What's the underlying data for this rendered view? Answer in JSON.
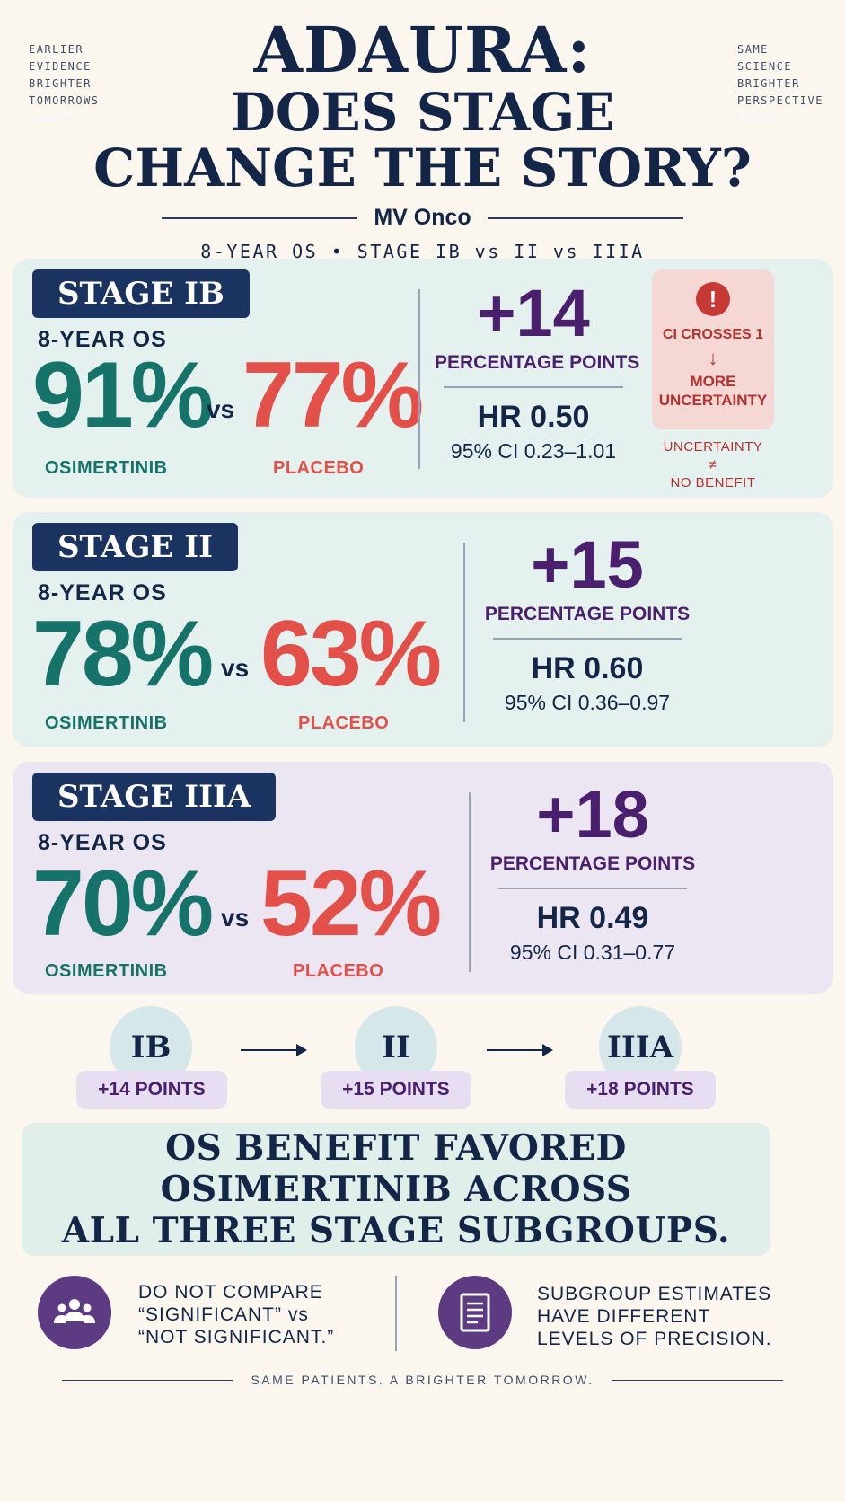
{
  "header": {
    "corner_left": [
      "EARLIER",
      "EVIDENCE",
      "BRIGHTER",
      "TOMORROWS"
    ],
    "corner_right": [
      "SAME",
      "SCIENCE",
      "BRIGHTER",
      "PERSPECTIVE"
    ],
    "title_line1": "ADAURA:",
    "title_line2": "DOES STAGE",
    "title_line3": "CHANGE THE STORY?",
    "brand": "MV Onco",
    "subtitle": "8-YEAR OS • STAGE IB vs II vs IIIA"
  },
  "stages": [
    {
      "stage": "STAGE IB",
      "os_label": "8-YEAR OS",
      "osimertinib_pct": "91%",
      "vs": "vs",
      "placebo_pct": "77%",
      "osimertinib_label": "OSIMERTINIB",
      "placebo_label": "PLACEBO",
      "delta": "+14",
      "delta_label": "PERCENTAGE POINTS",
      "hr": "HR 0.50",
      "ci": "95% CI 0.23–1.01",
      "warning": {
        "icon": "exclamation-icon",
        "line1": "CI CROSSES 1",
        "arrow": "↓",
        "line2": "MORE",
        "line3": "UNCERTAINTY",
        "note1": "UNCERTAINTY",
        "note2": "≠",
        "note3": "NO BENEFIT"
      }
    },
    {
      "stage": "STAGE II",
      "os_label": "8-YEAR OS",
      "osimertinib_pct": "78%",
      "vs": "vs",
      "placebo_pct": "63%",
      "osimertinib_label": "OSIMERTINIB",
      "placebo_label": "PLACEBO",
      "delta": "+15",
      "delta_label": "PERCENTAGE POINTS",
      "hr": "HR 0.60",
      "ci": "95% CI 0.36–0.97"
    },
    {
      "stage": "STAGE IIIA",
      "os_label": "8-YEAR OS",
      "osimertinib_pct": "70%",
      "vs": "vs",
      "placebo_pct": "52%",
      "osimertinib_label": "OSIMERTINIB",
      "placebo_label": "PLACEBO",
      "delta": "+18",
      "delta_label": "PERCENTAGE POINTS",
      "hr": "HR 0.49",
      "ci": "95% CI 0.31–0.77"
    }
  ],
  "progression": [
    {
      "stage": "IB",
      "points": "+14 POINTS"
    },
    {
      "stage": "II",
      "points": "+15 POINTS"
    },
    {
      "stage": "IIIA",
      "points": "+18 POINTS"
    }
  ],
  "conclusion": {
    "line1": "OS BENEFIT FAVORED",
    "line2": "OSIMERTINIB ACROSS",
    "line3": "ALL THREE STAGE SUBGROUPS."
  },
  "notes": [
    {
      "icon": "people-group-icon",
      "lines": [
        "DO NOT COMPARE",
        "“SIGNIFICANT” vs",
        "“NOT SIGNIFICANT.”"
      ]
    },
    {
      "icon": "document-icon",
      "lines": [
        "SUBGROUP ESTIMATES",
        "HAVE DIFFERENT",
        "LEVELS OF PRECISION."
      ]
    }
  ],
  "footer": "SAME PATIENTS. A BRIGHTER TOMORROW.",
  "colors": {
    "navy": "#142648",
    "teal_green": "#167369",
    "placebo_red": "#e25049",
    "purple": "#4a1f6e",
    "icon_purple": "#5c3b82"
  }
}
